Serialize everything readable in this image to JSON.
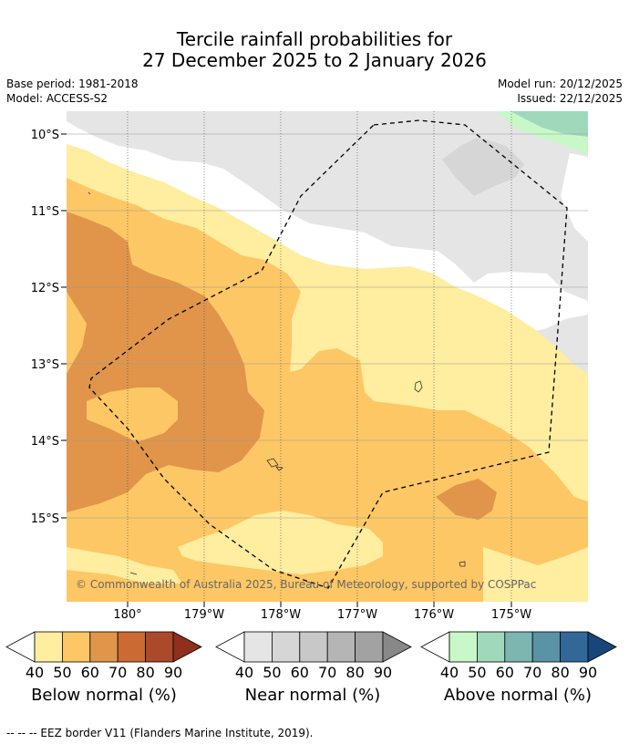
{
  "title": {
    "line1": "Tercile rainfall probabilities for",
    "line2": "27 December 2025 to 2 January 2026"
  },
  "meta": {
    "base_period": "Base period: 1981-2018",
    "model": "Model: ACCESS-S2",
    "model_run": "Model run: 20/12/2025",
    "issued": "Issued: 22/12/2025"
  },
  "map": {
    "lat_labels": [
      "10°S",
      "11°S",
      "12°S",
      "13°S",
      "14°S",
      "15°S"
    ],
    "lon_labels": [
      "180°",
      "179°W",
      "178°W",
      "177°W",
      "176°W",
      "175°W"
    ],
    "copyright": "© Commonwealth of Australia 2025, Bureau of Meteorology, supported by COSPPac"
  },
  "colorbars": [
    {
      "label": "Below normal (%)",
      "ticks": [
        "40",
        "50",
        "60",
        "70",
        "80",
        "90"
      ],
      "colors": [
        "#ffeda0",
        "#fdc765",
        "#e0954a",
        "#cc6a34",
        "#aa4a2a",
        "#8f2f1c"
      ]
    },
    {
      "label": "Near normal (%)",
      "ticks": [
        "40",
        "50",
        "60",
        "70",
        "80",
        "90"
      ],
      "colors": [
        "#e5e5e5",
        "#d6d6d6",
        "#c8c8c8",
        "#b5b5b5",
        "#a2a2a2",
        "#888888"
      ]
    },
    {
      "label": "Above normal (%)",
      "ticks": [
        "40",
        "50",
        "60",
        "70",
        "80",
        "90"
      ],
      "colors": [
        "#c8f8c8",
        "#a0d8bc",
        "#7db5b0",
        "#5b93a6",
        "#316898",
        "#17467a"
      ]
    }
  ],
  "footer": "--  --  -- EEZ border V11 (Flanders Marine Institute, 2019)."
}
